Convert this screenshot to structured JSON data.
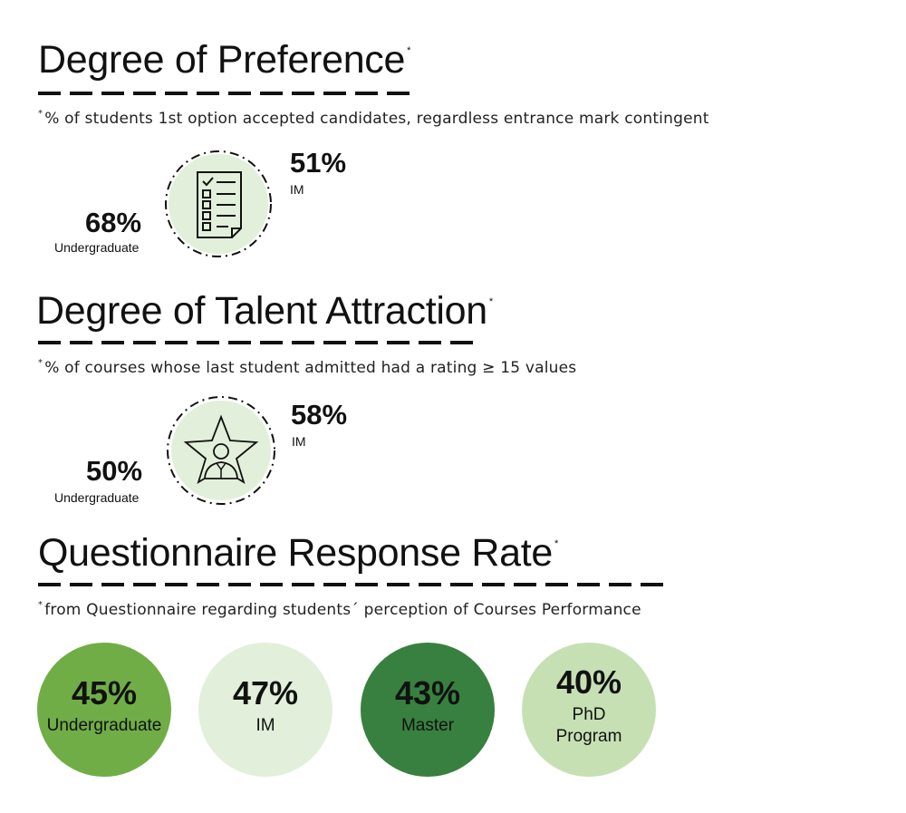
{
  "preference": {
    "title": "Degree of Preference",
    "asterisk": "*",
    "note_asterisk": "*",
    "note": "% of students 1st option accepted candidates,  regardless  entrance mark contingent",
    "icon": "checklist-document-icon",
    "im_value": "51%",
    "im_label": "IM",
    "ug_value": "68%",
    "ug_label": "Undergraduate"
  },
  "talent": {
    "title": "Degree of Talent Attraction",
    "asterisk": "*",
    "note_asterisk": "*",
    "note": "% of courses whose last student admitted had a rating ≥ 15  values",
    "icon": "star-person-icon",
    "im_value": "58%",
    "im_label": "IM",
    "ug_value": "50%",
    "ug_label": "Undergraduate"
  },
  "questionnaire": {
    "title": "Questionnaire Response Rate",
    "asterisk": "*",
    "note_asterisk": "*",
    "note": "from Questionnaire regarding students´ perception of Courses Performance",
    "rates": [
      {
        "value": "45%",
        "label": "Undergraduate",
        "color": "#70ad47"
      },
      {
        "value": "47%",
        "label": "IM",
        "color": "#e2efda"
      },
      {
        "value": "43%",
        "label": "Master",
        "color": "#38803f"
      },
      {
        "value": "40%",
        "label": "PhD Program",
        "color": "#c6e0b4"
      }
    ]
  },
  "colors": {
    "icon_fill": "#e2efda",
    "ink": "#111111"
  }
}
